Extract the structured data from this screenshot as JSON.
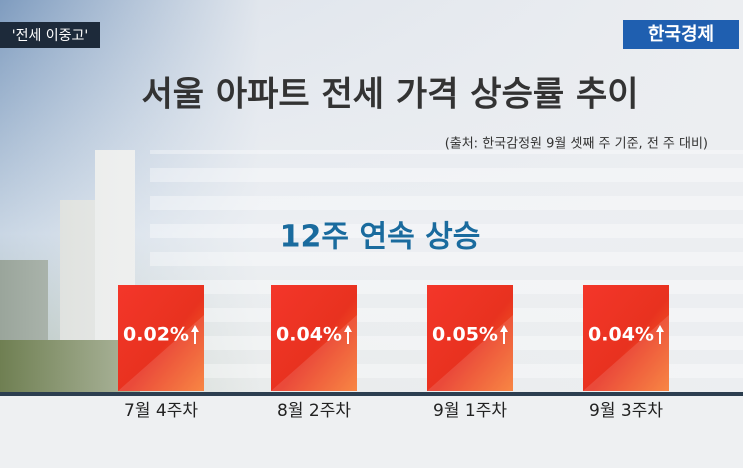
{
  "tag": "'전세 이중고'",
  "brand": "한국경제",
  "title": "서울 아파트 전세 가격 상승률 추이",
  "source": "(출처: 한국감정원 9월 셋째 주 기준, 전 주 대비)",
  "subtitle": "12주 연속 상승",
  "items": [
    {
      "label": "7월 4주차",
      "value": "0.02%"
    },
    {
      "label": "8월 2주차",
      "value": "0.04%"
    },
    {
      "label": "9월 1주차",
      "value": "0.05%"
    },
    {
      "label": "9월 3주차",
      "value": "0.04%"
    }
  ]
}
